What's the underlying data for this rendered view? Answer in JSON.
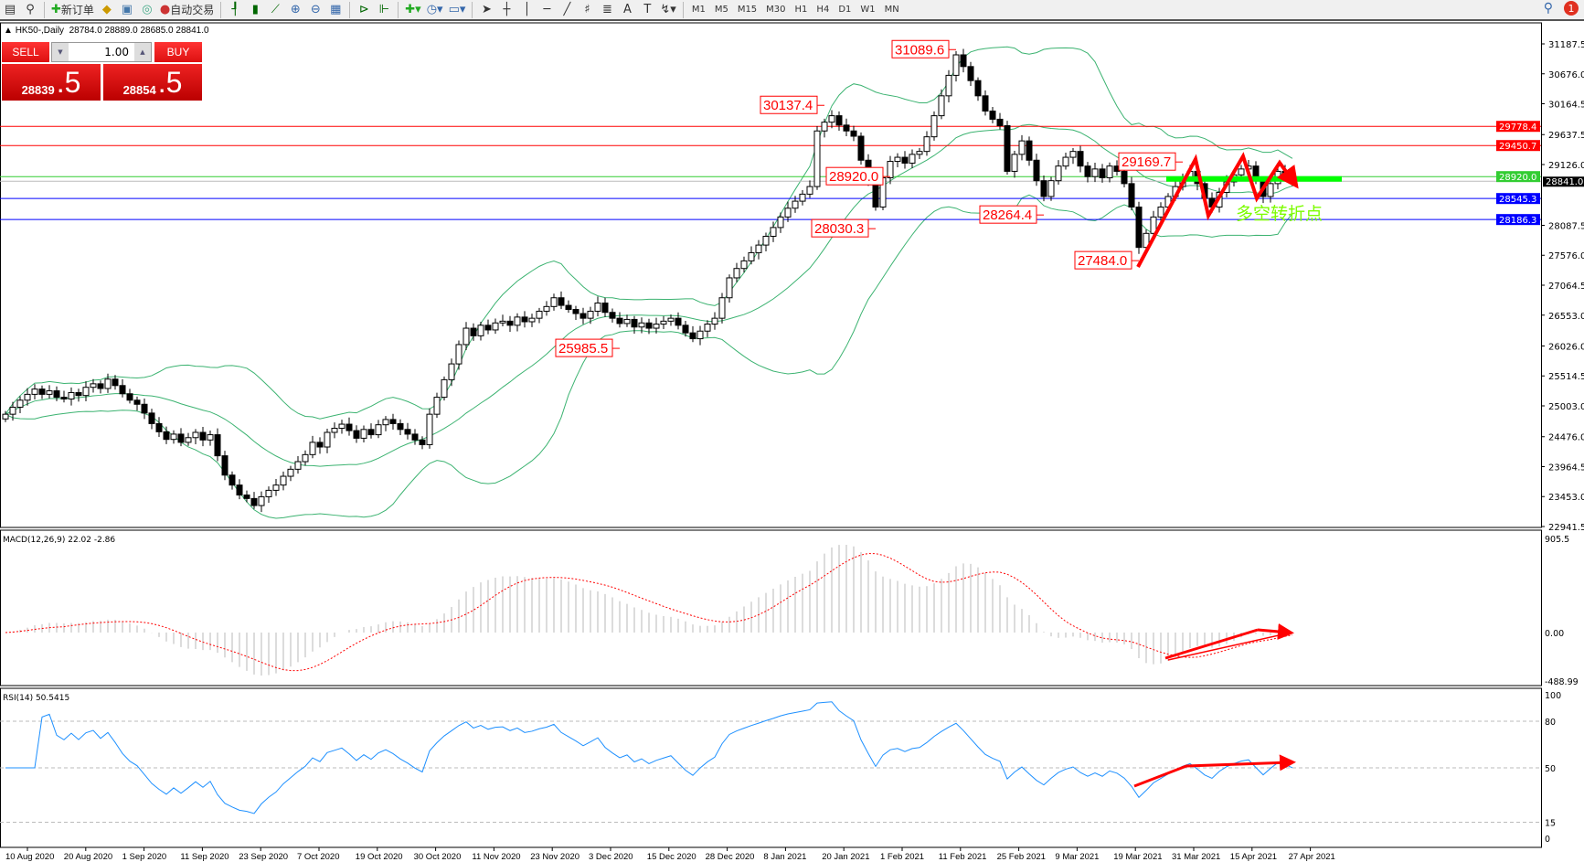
{
  "toolbar": {
    "new_order": "新订单",
    "auto_trading": "自动交易",
    "timeframes": [
      "M1",
      "M5",
      "M15",
      "M30",
      "H1",
      "H4",
      "D1",
      "W1",
      "MN"
    ],
    "notifications": "1",
    "icons": [
      "new-chart-icon",
      "zoom-window-icon",
      "new-order-icon",
      "metaeditor-icon",
      "navigator-icon",
      "signals-icon",
      "auto-trading-icon",
      "bar-chart-icon",
      "candlestick-icon",
      "line-chart-icon",
      "zoom-in-icon",
      "zoom-out-icon",
      "tile-windows-icon",
      "autoscroll-icon",
      "chart-shift-icon",
      "indicators-icon",
      "periods-icon",
      "templates-icon",
      "cursor-icon",
      "crosshair-icon",
      "vertical-line-icon",
      "horizontal-line-icon",
      "trendline-icon",
      "fibonacci-icon",
      "fibo-fan-icon",
      "text-icon",
      "text-label-icon",
      "arrows-icon",
      "search-icon",
      "chat-icon"
    ]
  },
  "symbol": {
    "header": "HK50-,Daily",
    "ohlc": "28784.0 28889.0 28685.0 28841.0"
  },
  "trade_panel": {
    "sell_label": "SELL",
    "buy_label": "BUY",
    "lot": "1.00",
    "sell_main": "28839",
    "sell_frac": ".5",
    "buy_main": "28854",
    "buy_frac": ".5"
  },
  "chart_data": {
    "type": "candlestick",
    "symbol": "HK50-",
    "timeframe": "Daily",
    "price_axis": [
      "31187.5",
      "30676.0",
      "30164.5",
      "29637.5",
      "29126.0",
      "28087.5",
      "27576.0",
      "27064.5",
      "26553.0",
      "26026.0",
      "25514.5",
      "25003.0",
      "24476.0",
      "23964.5",
      "23453.0",
      "22941.5"
    ],
    "ylim": [
      22941.5,
      31187.5
    ],
    "date_labels": [
      "10 Aug 2020",
      "20 Aug 2020",
      "1 Sep 2020",
      "11 Sep 2020",
      "23 Sep 2020",
      "7 Oct 2020",
      "19 Oct 2020",
      "30 Oct 2020",
      "11 Nov 2020",
      "23 Nov 2020",
      "3 Dec 2020",
      "15 Dec 2020",
      "28 Dec 2020",
      "8 Jan 2021",
      "20 Jan 2021",
      "1 Feb 2021",
      "11 Feb 2021",
      "25 Feb 2021",
      "9 Mar 2021",
      "19 Mar 2021",
      "31 Mar 2021",
      "15 Apr 2021",
      "27 Apr 2021"
    ],
    "close": [
      24860,
      24980,
      25100,
      25200,
      25290,
      25200,
      25260,
      25150,
      25120,
      25230,
      25180,
      25320,
      25380,
      25300,
      25460,
      25350,
      25210,
      25100,
      25030,
      24880,
      24700,
      24560,
      24430,
      24520,
      24380,
      24460,
      24550,
      24420,
      24510,
      24150,
      23820,
      23650,
      23480,
      23420,
      23300,
      23450,
      23560,
      23650,
      23800,
      23920,
      24050,
      24170,
      24380,
      24300,
      24550,
      24620,
      24690,
      24580,
      24450,
      24600,
      24510,
      24680,
      24770,
      24700,
      24600,
      24520,
      24420,
      24340,
      24860,
      25150,
      25450,
      25720,
      26050,
      26330,
      26200,
      26380,
      26300,
      26420,
      26450,
      26380,
      26520,
      26440,
      26500,
      26620,
      26700,
      26850,
      26720,
      26650,
      26580,
      26500,
      26620,
      26760,
      26600,
      26500,
      26410,
      26480,
      26350,
      26420,
      26330,
      26400,
      26450,
      26500,
      26380,
      26250,
      26150,
      26280,
      26400,
      26500,
      26850,
      27190,
      27350,
      27480,
      27620,
      27750,
      27900,
      28050,
      28230,
      28380,
      28500,
      28620,
      28750,
      29700,
      29850,
      29960,
      29800,
      29700,
      29610,
      29200,
      28830,
      28400,
      28900,
      29180,
      29250,
      29150,
      29300,
      29350,
      29600,
      29960,
      30300,
      30650,
      31000,
      30800,
      30560,
      30300,
      30040,
      29900,
      29790,
      29010,
      29300,
      29530,
      29200,
      28850,
      28580,
      28850,
      29100,
      29250,
      29350,
      29100,
      28920,
      29050,
      28900,
      29100,
      29010,
      28800,
      28400,
      27710,
      27950,
      28230,
      28400,
      28580,
      28750,
      28900,
      29010,
      28800,
      28550,
      28400,
      28650,
      28830,
      28950,
      29050,
      29100,
      28850,
      28580,
      28800,
      29010,
      28950,
      28841
    ],
    "horizontal_lines": [
      {
        "value": 29778.4,
        "label": "29778.4",
        "color": "#ff0000"
      },
      {
        "value": 29450.7,
        "label": "29450.7",
        "color": "#ff0000"
      },
      {
        "value": 28920.0,
        "label": "28920.0",
        "color": "#32cd32"
      },
      {
        "value": 28545.3,
        "label": "28545.3",
        "color": "#0000ff"
      },
      {
        "value": 28186.3,
        "label": "28186.3",
        "color": "#0000ff"
      }
    ],
    "current_price": {
      "value": 28841.0,
      "label": "28841.0"
    },
    "bollinger": {
      "period": 20,
      "deviation": 2,
      "color": "#3cb371"
    },
    "annotations": [
      {
        "text": "31089.6",
        "bar": 130,
        "value": 31089.6
      },
      {
        "text": "30137.4",
        "bar": 112,
        "value": 30137.4
      },
      {
        "text": "29169.7",
        "bar": 161,
        "value": 29169.7
      },
      {
        "text": "28920.0",
        "bar": 121,
        "value": 28920.0
      },
      {
        "text": "28264.4",
        "bar": 142,
        "value": 28264.4
      },
      {
        "text": "28030.3",
        "bar": 119,
        "value": 28030.3
      },
      {
        "text": "27484.0",
        "bar": 155,
        "value": 27484.0
      },
      {
        "text": "25985.5",
        "bar": 84,
        "value": 25985.5
      }
    ],
    "turning_point_text": "多空转折点",
    "turning_point_level": 28880,
    "macd": {
      "label": "MACD(12,26,9) 22.02 -2.86",
      "axis": [
        "905.5",
        "0.00",
        "-488.99"
      ],
      "ylim": [
        -488.99,
        905.5
      ]
    },
    "rsi": {
      "label": "RSI(14) 50.5415",
      "axis": [
        "100",
        "80",
        "50",
        "15",
        "0"
      ],
      "levels": [
        80,
        50,
        15
      ],
      "ylim": [
        0,
        100
      ],
      "color": "#1e90ff"
    }
  }
}
